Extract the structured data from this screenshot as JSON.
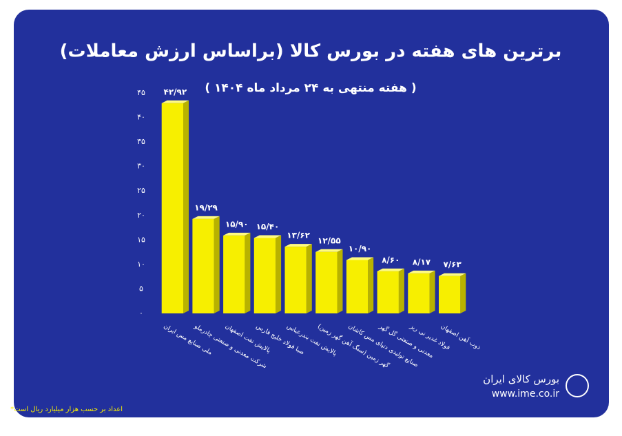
{
  "chart_data": {
    "type": "bar",
    "title": "برترین های هفته در بورس کالا (براساس ارزش معاملات)",
    "subtitle": "( هفته منتهی به ۲۴ مرداد ماه ۱۴۰۴ )",
    "categories": [
      "ملی صنایع مس ایران",
      "شرکت معدنی و صنعتی چادرملو",
      "پالایش نفت اصفهان",
      "صبا فولاد خلیج فارس",
      "پالایش نفت بندرعباس",
      "گهر زمین (سنگ آهن گهر زمین)",
      "صنایع تولیدی دنیای مس کاشان",
      "معدنی و صنعتی گل گهر",
      "فولاد غدیر نی ریز",
      "ذوب آهن اصفهان"
    ],
    "values": [
      42.92,
      19.29,
      15.9,
      15.4,
      13.62,
      12.55,
      10.9,
      8.6,
      8.17,
      7.63
    ],
    "value_labels": [
      "۴۲/۹۲",
      "۱۹/۲۹",
      "۱۵/۹۰",
      "۱۵/۴۰",
      "۱۳/۶۲",
      "۱۲/۵۵",
      "۱۰/۹۰",
      "۸/۶۰",
      "۸/۱۷",
      "۷/۶۳"
    ],
    "color": "#f7ef00",
    "ylim": [
      0,
      45
    ],
    "yticks": [
      {
        "value": 0,
        "label": "۰"
      },
      {
        "value": 5,
        "label": "۵"
      },
      {
        "value": 10,
        "label": "۱۰"
      },
      {
        "value": 15,
        "label": "۱۵"
      },
      {
        "value": 20,
        "label": "۲۰"
      },
      {
        "value": 25,
        "label": "۲۵"
      },
      {
        "value": 30,
        "label": "۳۰"
      },
      {
        "value": 35,
        "label": "۳۵"
      },
      {
        "value": 40,
        "label": "۴۰"
      },
      {
        "value": 45,
        "label": "۴۵"
      }
    ],
    "grid": false,
    "footnote": "*اعداد بر حسب هزار میلیارد ریال است",
    "source": "بورس کالای ایران",
    "website": "www.ime.co.ir"
  }
}
